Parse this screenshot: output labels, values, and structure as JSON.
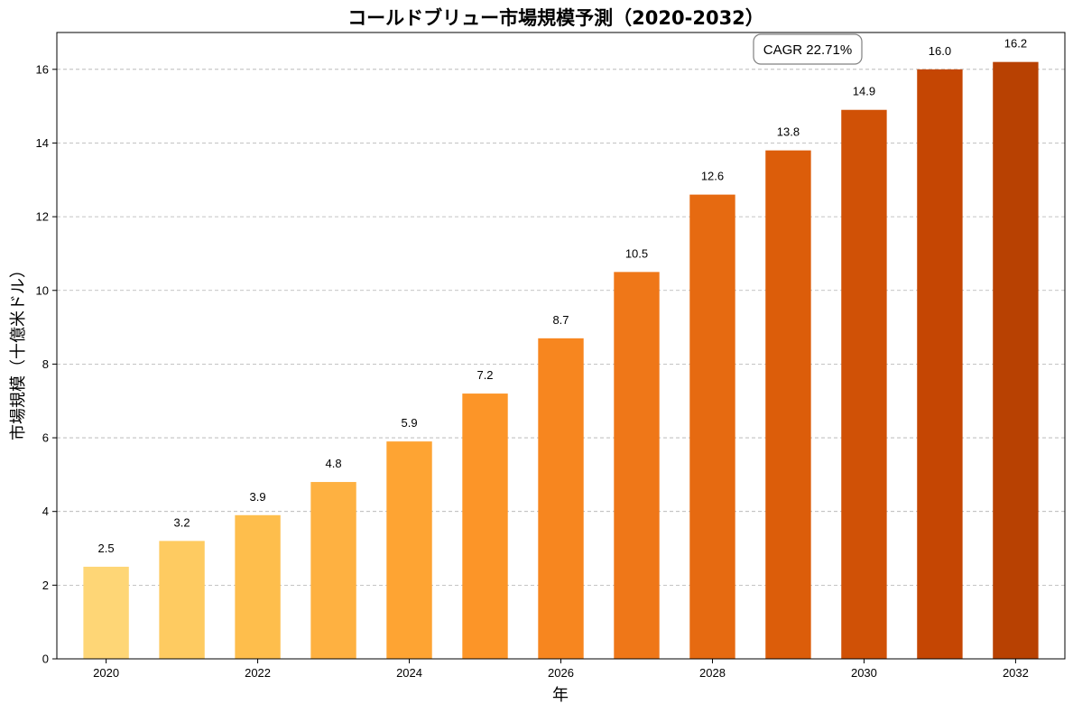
{
  "chart_data": {
    "type": "bar",
    "title": "コールドブリュー市場規模予測（2020-2032）",
    "xlabel": "年",
    "ylabel": "市場規模（十億米ドル）",
    "categories": [
      "2020",
      "2021",
      "2022",
      "2023",
      "2024",
      "2025",
      "2026",
      "2027",
      "2028",
      "2029",
      "2030",
      "2031",
      "2032"
    ],
    "values": [
      2.5,
      3.2,
      3.9,
      4.8,
      5.9,
      7.2,
      8.7,
      10.5,
      12.6,
      13.8,
      14.9,
      16.0,
      16.2
    ],
    "data_labels": [
      "2.5",
      "3.2",
      "3.9",
      "4.8",
      "5.9",
      "7.2",
      "8.7",
      "10.5",
      "12.6",
      "13.8",
      "14.9",
      "16.0",
      "16.2"
    ],
    "x_tick_labels": [
      "2020",
      "2022",
      "2024",
      "2026",
      "2028",
      "2030",
      "2032"
    ],
    "y_tick_labels": [
      "0",
      "2",
      "4",
      "6",
      "8",
      "10",
      "12",
      "14",
      "16"
    ],
    "ylim": [
      0,
      17
    ],
    "grid": "y-dashed",
    "colors": [
      "#FED676",
      "#FECB61",
      "#FEBE4C",
      "#FEB141",
      "#FEA433",
      "#FC9528",
      "#F7861F",
      "#EF7718",
      "#E66A11",
      "#DC5D0A",
      "#D05106",
      "#C54603",
      "#B84102"
    ],
    "annotation": "CAGR 22.71%"
  }
}
